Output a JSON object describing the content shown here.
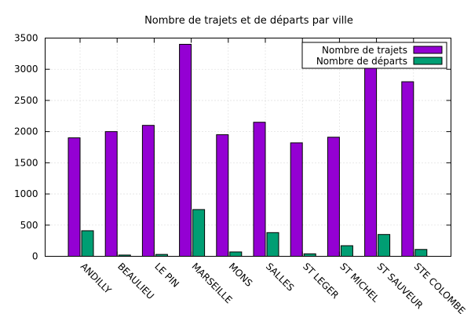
{
  "chart_data": {
    "type": "bar",
    "title": "Nombre de trajets et de départs par ville",
    "xlabel": "",
    "ylabel": "",
    "ylim": [
      0,
      3500
    ],
    "yticks": [
      0,
      500,
      1000,
      1500,
      2000,
      2500,
      3000,
      3500
    ],
    "grid": true,
    "legend_position": "top-right",
    "categories": [
      "ANDILLY",
      "BEAULIEU",
      "LE PIN",
      "MARSEILLE",
      "MONS",
      "SALLES",
      "ST LEGER",
      "ST MICHEL",
      "ST SAUVEUR",
      "STE COLOMBE"
    ],
    "series": [
      {
        "name": "Nombre de trajets",
        "color": "#9400d3",
        "values": [
          1900,
          2000,
          2100,
          3400,
          1950,
          2150,
          1820,
          1910,
          3050,
          2800
        ]
      },
      {
        "name": "Nombre de départs",
        "color": "#009e73",
        "values": [
          410,
          20,
          30,
          750,
          70,
          380,
          40,
          170,
          350,
          110
        ]
      }
    ]
  }
}
